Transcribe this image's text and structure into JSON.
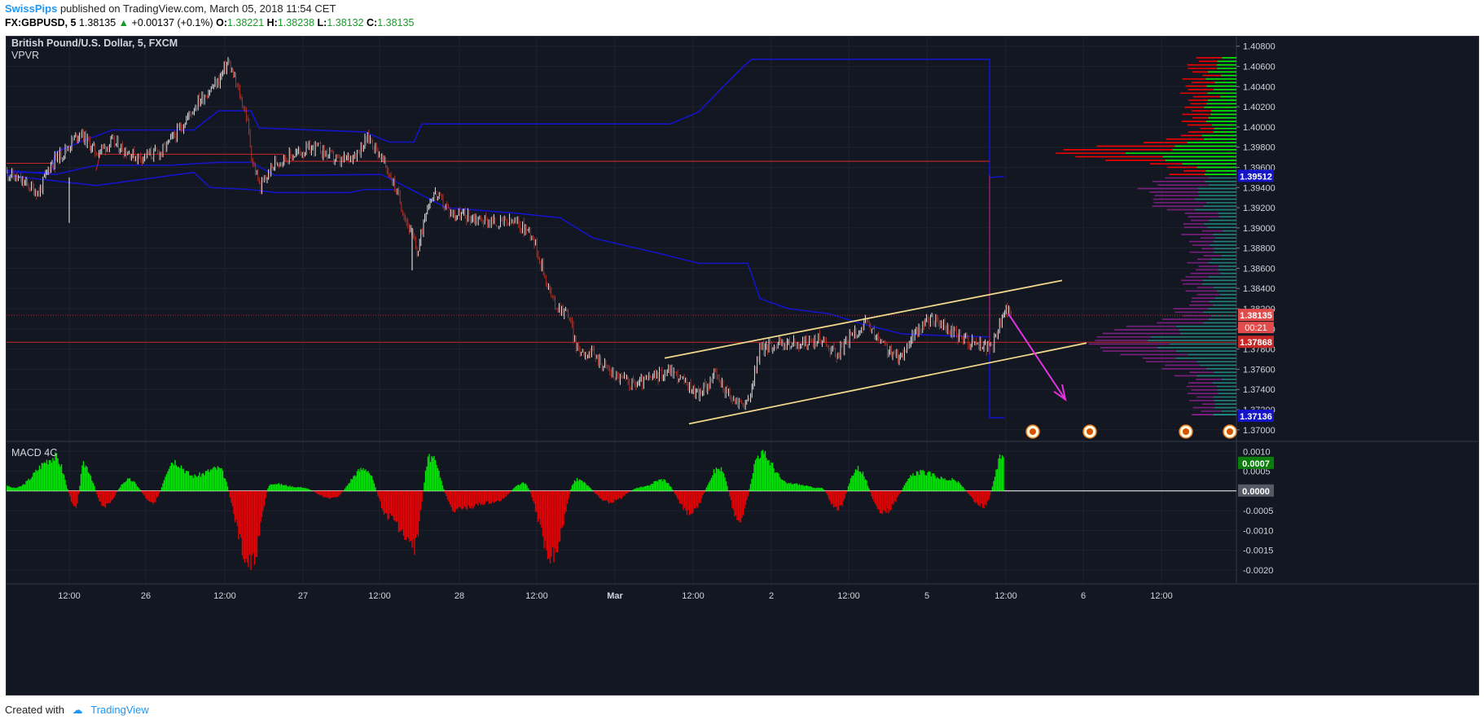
{
  "header": {
    "author": "SwissPips",
    "published": "published on TradingView.com, March 05, 2018 11:54 CET",
    "symbol": "FX:GBPUSD, 5",
    "last": "1.38135",
    "change": "+0.00137 (+0.1%)",
    "o_label": "O:",
    "o_value": "1.38221",
    "h_label": "H:",
    "h_value": "1.38238",
    "l_label": "L:",
    "l_value": "1.38132",
    "c_label": "C:",
    "c_value": "1.38135"
  },
  "footer": {
    "created_with": "Created with",
    "brand": "TradingView"
  },
  "colors": {
    "bg": "#131722",
    "bull": "#00ff00",
    "bear": "#ff0000",
    "vwap": "#1414c8",
    "channel": "#f0d68a",
    "arrow": "#e033e0",
    "price_line": "#c62828"
  },
  "chart_data": [
    {
      "type": "candlestick",
      "title": "British Pound/U.S. Dollar, 5, FXCM",
      "indicator": "VPVR",
      "y_ticks": [
        "1.40800",
        "1.40600",
        "1.40400",
        "1.40200",
        "1.40000",
        "1.39800",
        "1.39600",
        "1.39400",
        "1.39200",
        "1.39000",
        "1.38800",
        "1.38600",
        "1.38400",
        "1.38200",
        "1.38000",
        "1.37800",
        "1.37600",
        "1.37400",
        "1.37200",
        "1.37000"
      ],
      "ylim": [
        1.3695,
        1.4083
      ],
      "x_ticks": [
        "12:00",
        "26",
        "12:00",
        "27",
        "12:00",
        "28",
        "12:00",
        "Mar",
        "12:00",
        "2",
        "12:00",
        "5",
        "12:00",
        "6",
        "12:00"
      ],
      "price_path": [
        [
          0,
          1.3955
        ],
        [
          40,
          1.3935
        ],
        [
          55,
          1.3965
        ],
        [
          70,
          1.3975
        ],
        [
          90,
          1.3995
        ],
        [
          110,
          1.3975
        ],
        [
          130,
          1.3985
        ],
        [
          160,
          1.397
        ],
        [
          190,
          1.3975
        ],
        [
          210,
          1.3995
        ],
        [
          235,
          1.4025
        ],
        [
          260,
          1.4045
        ],
        [
          272,
          1.4065
        ],
        [
          285,
          1.4035
        ],
        [
          295,
          1.401
        ],
        [
          302,
          1.3965
        ],
        [
          312,
          1.394
        ],
        [
          330,
          1.3965
        ],
        [
          360,
          1.3975
        ],
        [
          380,
          1.398
        ],
        [
          410,
          1.3965
        ],
        [
          430,
          1.3975
        ],
        [
          445,
          1.399
        ],
        [
          460,
          1.397
        ],
        [
          475,
          1.3945
        ],
        [
          490,
          1.391
        ],
        [
          505,
          1.3875
        ],
        [
          515,
          1.392
        ],
        [
          525,
          1.3935
        ],
        [
          545,
          1.3915
        ],
        [
          575,
          1.391
        ],
        [
          600,
          1.3905
        ],
        [
          625,
          1.3905
        ],
        [
          645,
          1.3895
        ],
        [
          660,
          1.3855
        ],
        [
          672,
          1.3825
        ],
        [
          690,
          1.3815
        ],
        [
          700,
          1.378
        ],
        [
          720,
          1.3775
        ],
        [
          745,
          1.3755
        ],
        [
          770,
          1.3745
        ],
        [
          790,
          1.375
        ],
        [
          815,
          1.376
        ],
        [
          835,
          1.3745
        ],
        [
          850,
          1.3735
        ],
        [
          870,
          1.3755
        ],
        [
          890,
          1.373
        ],
        [
          910,
          1.3725
        ],
        [
          925,
          1.378
        ],
        [
          945,
          1.3785
        ],
        [
          975,
          1.3785
        ],
        [
          1000,
          1.379
        ],
        [
          1020,
          1.3775
        ],
        [
          1040,
          1.3795
        ],
        [
          1055,
          1.3805
        ],
        [
          1075,
          1.3785
        ],
        [
          1095,
          1.377
        ],
        [
          1115,
          1.3795
        ],
        [
          1135,
          1.381
        ],
        [
          1155,
          1.38
        ],
        [
          1175,
          1.379
        ],
        [
          1195,
          1.3785
        ],
        [
          1210,
          1.378
        ],
        [
          1220,
          1.3805
        ],
        [
          1230,
          1.3823
        ],
        [
          1235,
          1.38135
        ]
      ],
      "annotations": {
        "vpvr_poc": "1.37868",
        "last_price": "1.38135",
        "countdown": "00:21",
        "vah": "1.39512",
        "val": "1.37136"
      }
    },
    {
      "type": "bar",
      "title": "MACD 4C",
      "y_ticks": [
        "0.0010",
        "0.0005",
        "0.0000",
        "-0.0005",
        "-0.0010",
        "-0.0015",
        "-0.0020"
      ],
      "ylim": [
        -0.00225,
        0.00115
      ],
      "annotations": {
        "macd_value": "0.0007",
        "zero_label": "0.0000"
      },
      "series_hint": "MACD histogram, green above zero, red below zero",
      "bursts": [
        [
          10,
          8e-05
        ],
        [
          60,
          0.0009
        ],
        [
          85,
          -0.0004
        ],
        [
          95,
          0.0007
        ],
        [
          120,
          -0.0004
        ],
        [
          150,
          0.0003
        ],
        [
          180,
          -0.0003
        ],
        [
          205,
          0.0008
        ],
        [
          230,
          0.0004
        ],
        [
          260,
          0.0006
        ],
        [
          300,
          -0.002
        ],
        [
          325,
          0.0002
        ],
        [
          360,
          0.0001
        ],
        [
          400,
          -0.0002
        ],
        [
          440,
          0.0006
        ],
        [
          470,
          -0.0007
        ],
        [
          500,
          -0.0015
        ],
        [
          520,
          0.0009
        ],
        [
          550,
          -0.0005
        ],
        [
          600,
          -0.0003
        ],
        [
          635,
          0.0002
        ],
        [
          670,
          -0.0017
        ],
        [
          700,
          0.0003
        ],
        [
          740,
          -0.0003
        ],
        [
          780,
          0.0001
        ],
        [
          805,
          0.0003
        ],
        [
          840,
          -0.0006
        ],
        [
          875,
          0.0006
        ],
        [
          900,
          -0.0008
        ],
        [
          925,
          0.001
        ],
        [
          960,
          0.0002
        ],
        [
          1000,
          8e-05
        ],
        [
          1020,
          -0.0005
        ],
        [
          1045,
          0.0006
        ],
        [
          1075,
          -0.0006
        ],
        [
          1120,
          0.0005
        ],
        [
          1160,
          0.0003
        ],
        [
          1200,
          -0.0004
        ],
        [
          1225,
          0.001
        ]
      ]
    }
  ]
}
